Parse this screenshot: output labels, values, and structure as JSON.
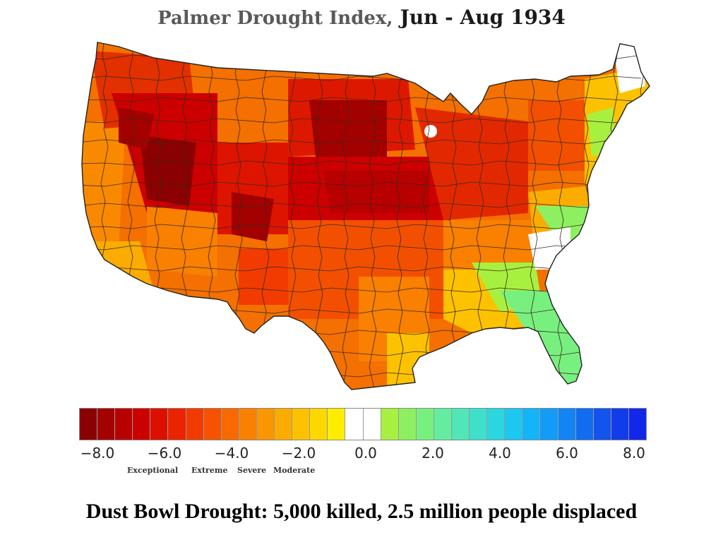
{
  "title": {
    "main": "Palmer Drought Index,",
    "period": "Jun - Aug 1934"
  },
  "legend": {
    "colors": [
      "#8b0000",
      "#a30000",
      "#b80000",
      "#cc0000",
      "#dd0f00",
      "#ea2400",
      "#f23b00",
      "#f55300",
      "#f76a00",
      "#f98000",
      "#fa9600",
      "#fbac00",
      "#fcc200",
      "#fdd800",
      "#fdee00",
      "#ffffff",
      "#ffffff",
      "#a8f040",
      "#8ef060",
      "#78f080",
      "#64eca0",
      "#50e6b8",
      "#3ee0cc",
      "#2cd6e0",
      "#1cc8f0",
      "#14b4f8",
      "#129cf8",
      "#1284f4",
      "#126cf0",
      "#1254ec",
      "#123cea",
      "#1228e8"
    ],
    "ticks": [
      "−8.0",
      "−6.0",
      "−4.0",
      "−2.0",
      "0.0",
      "2.0",
      "4.0",
      "6.0",
      "8.0"
    ],
    "categories": [
      "Exceptional",
      "Extreme",
      "Severe",
      "Moderate"
    ]
  },
  "map": {
    "region": "Contiguous United States",
    "palette": {
      "exceptional": "#8b0000",
      "extreme": "#d81000",
      "severe": "#f25000",
      "moderate": "#fbb000",
      "near_normal": "#ffffff",
      "moist": "#8ef060"
    }
  },
  "caption": "Dust Bowl Drought: 5,000 killed, 2.5 million people displaced"
}
